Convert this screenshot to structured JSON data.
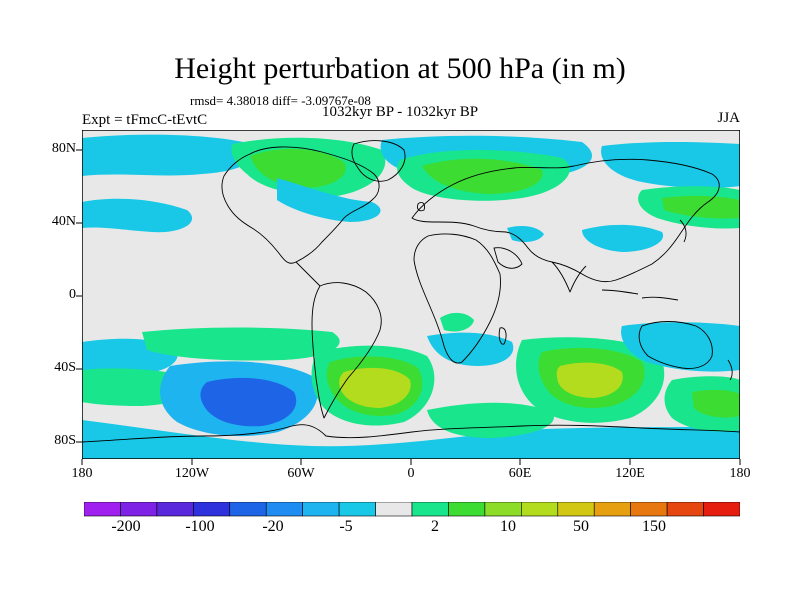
{
  "title": "Height perturbation at 500 hPa (in m)",
  "stats": "rmsd= 4.38018 diff= -3.09767e-08",
  "subtitle": "1032kyr BP - 1032kyr BP",
  "experiment": "Expt = tFmcC-tEvtC",
  "season": "JJA",
  "axes": {
    "lat_ticks": [
      "80N",
      "40N",
      "0",
      "40S",
      "80S"
    ],
    "lon_ticks": [
      "180",
      "120W",
      "60W",
      "0",
      "60E",
      "120E",
      "180"
    ]
  },
  "colorbar": {
    "colors": [
      "#a020f0",
      "#7e22e6",
      "#5a28dc",
      "#2d32dc",
      "#1e64e6",
      "#1e8cf0",
      "#1eb4f0",
      "#19c8e6",
      "#e8e8e8",
      "#19e68c",
      "#3cdc32",
      "#8cdc28",
      "#b4dc1e",
      "#d2c814",
      "#e6a00f",
      "#e6780f",
      "#e6460f",
      "#e61e0f"
    ],
    "labels": [
      "-200",
      "-100",
      "-20",
      "-5",
      "2",
      "10",
      "50",
      "150"
    ]
  },
  "colors": {
    "land_outline": "#000000",
    "neutral": "#e8e8e8",
    "light_blue": "#19c8e6",
    "mid_blue": "#1eb4f0",
    "dark_blue": "#1e64e6",
    "teal_green": "#19e68c",
    "green": "#3cdc32",
    "yellow_green": "#b4dc1e"
  }
}
